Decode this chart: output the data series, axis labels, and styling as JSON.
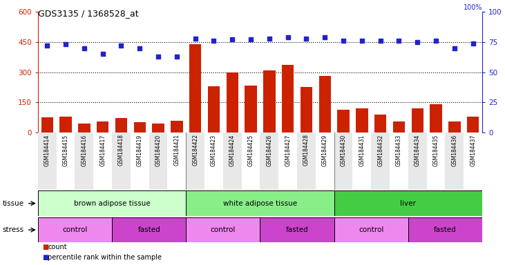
{
  "title": "GDS3135 / 1368528_at",
  "samples": [
    "GSM184414",
    "GSM184415",
    "GSM184416",
    "GSM184417",
    "GSM184418",
    "GSM184419",
    "GSM184420",
    "GSM184421",
    "GSM184422",
    "GSM184423",
    "GSM184424",
    "GSM184425",
    "GSM184426",
    "GSM184427",
    "GSM184428",
    "GSM184429",
    "GSM184430",
    "GSM184431",
    "GSM184432",
    "GSM184433",
    "GSM184434",
    "GSM184435",
    "GSM184436",
    "GSM184437"
  ],
  "counts": [
    75,
    80,
    45,
    55,
    72,
    50,
    45,
    60,
    440,
    230,
    300,
    235,
    310,
    335,
    225,
    280,
    115,
    120,
    90,
    55,
    120,
    140,
    55,
    80
  ],
  "percentile": [
    72,
    73,
    70,
    65,
    72,
    70,
    63,
    63,
    78,
    76,
    77,
    77,
    78,
    79,
    78,
    79,
    76,
    76,
    76,
    76,
    75,
    76,
    70,
    74
  ],
  "ylim_left": [
    0,
    600
  ],
  "ylim_right": [
    0,
    100
  ],
  "yticks_left": [
    0,
    150,
    300,
    450,
    600
  ],
  "yticks_right": [
    0,
    25,
    50,
    75,
    100
  ],
  "bar_color": "#cc2200",
  "dot_color": "#2222cc",
  "tissue_groups": [
    {
      "label": "brown adipose tissue",
      "start": 0,
      "end": 8,
      "color": "#ccffcc"
    },
    {
      "label": "white adipose tissue",
      "start": 8,
      "end": 16,
      "color": "#88ee88"
    },
    {
      "label": "liver",
      "start": 16,
      "end": 24,
      "color": "#44cc44"
    }
  ],
  "stress_groups": [
    {
      "label": "control",
      "start": 0,
      "end": 4,
      "color": "#ee88ee"
    },
    {
      "label": "fasted",
      "start": 4,
      "end": 8,
      "color": "#cc44cc"
    },
    {
      "label": "control",
      "start": 8,
      "end": 12,
      "color": "#ee88ee"
    },
    {
      "label": "fasted",
      "start": 12,
      "end": 16,
      "color": "#cc44cc"
    },
    {
      "label": "control",
      "start": 16,
      "end": 20,
      "color": "#ee88ee"
    },
    {
      "label": "fasted",
      "start": 20,
      "end": 24,
      "color": "#cc44cc"
    }
  ],
  "legend_count_label": "count",
  "legend_pct_label": "percentile rank within the sample",
  "tissue_label": "tissue",
  "stress_label": "stress",
  "col_bg_even": "#e8e8e8",
  "col_bg_odd": "#ffffff"
}
